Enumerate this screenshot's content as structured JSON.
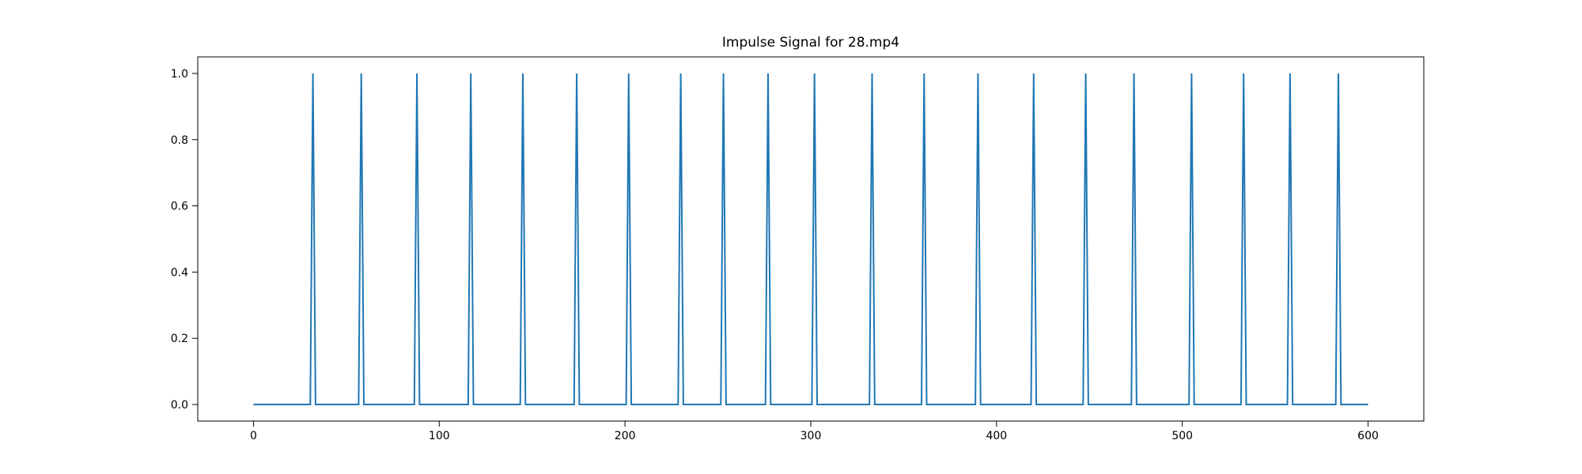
{
  "figure": {
    "background_color": "#ffffff"
  },
  "chart_data": {
    "type": "line",
    "title": "Impulse Signal for 28.mp4",
    "xlabel": "",
    "ylabel": "",
    "grid": false,
    "legend": null,
    "line_color": "#1f77b4",
    "axes_color": "#000000",
    "xlim": [
      -30,
      630
    ],
    "ylim": [
      -0.05,
      1.05
    ],
    "x_start": 0,
    "x_end": 600,
    "baseline_value": 0.0,
    "impulse_value": 1.0,
    "impulse_positions": [
      32,
      58,
      88,
      117,
      145,
      174,
      202,
      230,
      253,
      277,
      302,
      333,
      361,
      390,
      420,
      448,
      474,
      505,
      533,
      558,
      584
    ],
    "xticks": {
      "values": [
        0,
        100,
        200,
        300,
        400,
        500,
        600
      ],
      "labels": [
        "0",
        "100",
        "200",
        "300",
        "400",
        "500",
        "600"
      ]
    },
    "yticks": {
      "values": [
        0.0,
        0.2,
        0.4,
        0.6,
        0.8,
        1.0
      ],
      "labels": [
        "0.0",
        "0.2",
        "0.4",
        "0.6",
        "0.8",
        "1.0"
      ]
    }
  }
}
